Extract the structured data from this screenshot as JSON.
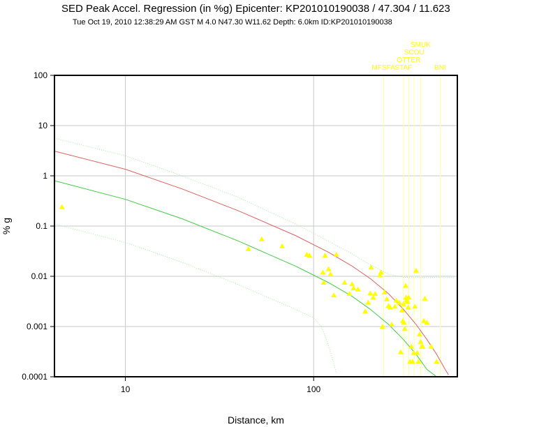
{
  "chart_data": {
    "type": "scatter",
    "title": "SED Peak Accel. Regression (in %g) Epicenter: KP201010190038 / 47.304 / 11.623",
    "subtitle": "Tue Oct 19, 2010 12:38:29 AM GST   M 4.0   N47.30 W11.62   Depth: 6.0km   ID:KP201010190038",
    "xlabel": "Distance, km",
    "ylabel": "% g",
    "xscale": "log",
    "yscale": "log",
    "xlim": [
      4.2,
      580
    ],
    "ylim": [
      0.0001,
      100
    ],
    "grid": true,
    "x_ticks": [
      {
        "value": 10,
        "label": "10"
      },
      {
        "value": 100,
        "label": "100"
      }
    ],
    "y_ticks": [
      {
        "value": 100,
        "label": "100"
      },
      {
        "value": 10,
        "label": "10"
      },
      {
        "value": 1,
        "label": "1"
      },
      {
        "value": 0.1,
        "label": "0.1"
      },
      {
        "value": 0.01,
        "label": "0.01"
      },
      {
        "value": 0.001,
        "label": "0.001"
      },
      {
        "value": 0.0001,
        "label": "0.0001"
      }
    ],
    "colors": {
      "points": "#ffff00",
      "mean_curve": "#e06060",
      "minus_sigma_curve": "#40cc40",
      "band_curves": "#a8e8a8",
      "station_lines": "#ffffa0",
      "grid": "#c8c8c8"
    },
    "stations": [
      {
        "name": "MFSFA",
        "x": 235,
        "row": 0
      },
      {
        "name": "STAF",
        "x": 300,
        "row": 0
      },
      {
        "name": "OTTER",
        "x": 320,
        "row": 1
      },
      {
        "name": "SCOU",
        "x": 342,
        "row": 2
      },
      {
        "name": "SMUK",
        "x": 370,
        "row": 3
      },
      {
        "name": "BNI",
        "x": 470,
        "row": 0
      }
    ],
    "series": [
      {
        "marker": "triangle",
        "x": [
          4.6,
          45,
          53,
          68,
          92,
          95,
          112,
          113,
          115,
          120,
          123,
          128,
          132,
          146,
          155,
          160,
          163,
          172,
          188,
          195,
          200,
          202,
          207,
          212,
          225,
          228,
          232,
          238,
          245,
          250,
          255,
          260,
          270,
          275,
          285,
          290,
          295,
          298,
          300,
          302,
          305,
          308,
          310,
          312,
          315,
          318,
          320,
          325,
          330,
          335,
          340,
          345,
          350,
          355,
          360,
          365,
          370,
          375,
          380,
          385,
          390,
          400,
          420,
          450
        ],
        "y": [
          0.24,
          0.035,
          0.055,
          0.04,
          0.027,
          0.026,
          0.012,
          0.0075,
          0.026,
          0.014,
          0.011,
          0.0042,
          0.027,
          0.0075,
          0.0045,
          0.007,
          0.0058,
          0.0055,
          0.002,
          0.003,
          0.0046,
          0.015,
          0.0038,
          0.0045,
          0.0105,
          0.012,
          0.001,
          0.0048,
          0.0035,
          0.0026,
          0.0024,
          0.0011,
          0.0025,
          0.0033,
          0.003,
          0.00031,
          0.0021,
          0.0013,
          0.0028,
          0.0012,
          0.0009,
          0.0065,
          0.0038,
          0.0034,
          0.0031,
          0.0024,
          0.0038,
          0.0002,
          0.0004,
          0.0002,
          0.0003,
          0.0025,
          0.013,
          0.0003,
          0.0002,
          0.0007,
          0.0005,
          0.0004,
          0.0004,
          0.0013,
          0.0036,
          0.0012,
          0.0004,
          0.0002
        ]
      }
    ],
    "curves": [
      {
        "kind": "mean",
        "x": [
          4.2,
          10,
          20,
          40,
          80,
          120,
          160,
          200,
          250,
          300,
          350,
          400,
          450,
          500,
          520
        ],
        "y": [
          3.1,
          1.35,
          0.55,
          0.2,
          0.065,
          0.03,
          0.016,
          0.009,
          0.0045,
          0.0022,
          0.0011,
          0.00055,
          0.00028,
          0.00014,
          0.00011
        ]
      },
      {
        "kind": "minus_sigma",
        "x": [
          4.2,
          10,
          20,
          40,
          80,
          120,
          160,
          200,
          250,
          300,
          350,
          400,
          450
        ],
        "y": [
          0.8,
          0.34,
          0.14,
          0.05,
          0.016,
          0.0075,
          0.004,
          0.0022,
          0.0011,
          0.00055,
          0.00028,
          0.00014,
          0.0001
        ]
      },
      {
        "kind": "plus_2sigma",
        "x": [
          4.2,
          10,
          20,
          40,
          80,
          120,
          160,
          200,
          250,
          300,
          400,
          500,
          560
        ],
        "y": [
          5.6,
          2.5,
          1.0,
          0.37,
          0.11,
          0.05,
          0.028,
          0.017,
          0.011,
          0.0095,
          0.0095,
          0.0095,
          0.0095
        ]
      },
      {
        "kind": "minus_2sigma",
        "x": [
          4.2,
          10,
          20,
          40,
          80,
          100,
          110,
          118,
          125,
          132
        ],
        "y": [
          0.11,
          0.047,
          0.019,
          0.0068,
          0.0022,
          0.0015,
          0.001,
          0.0005,
          0.00025,
          0.00012
        ]
      }
    ]
  }
}
